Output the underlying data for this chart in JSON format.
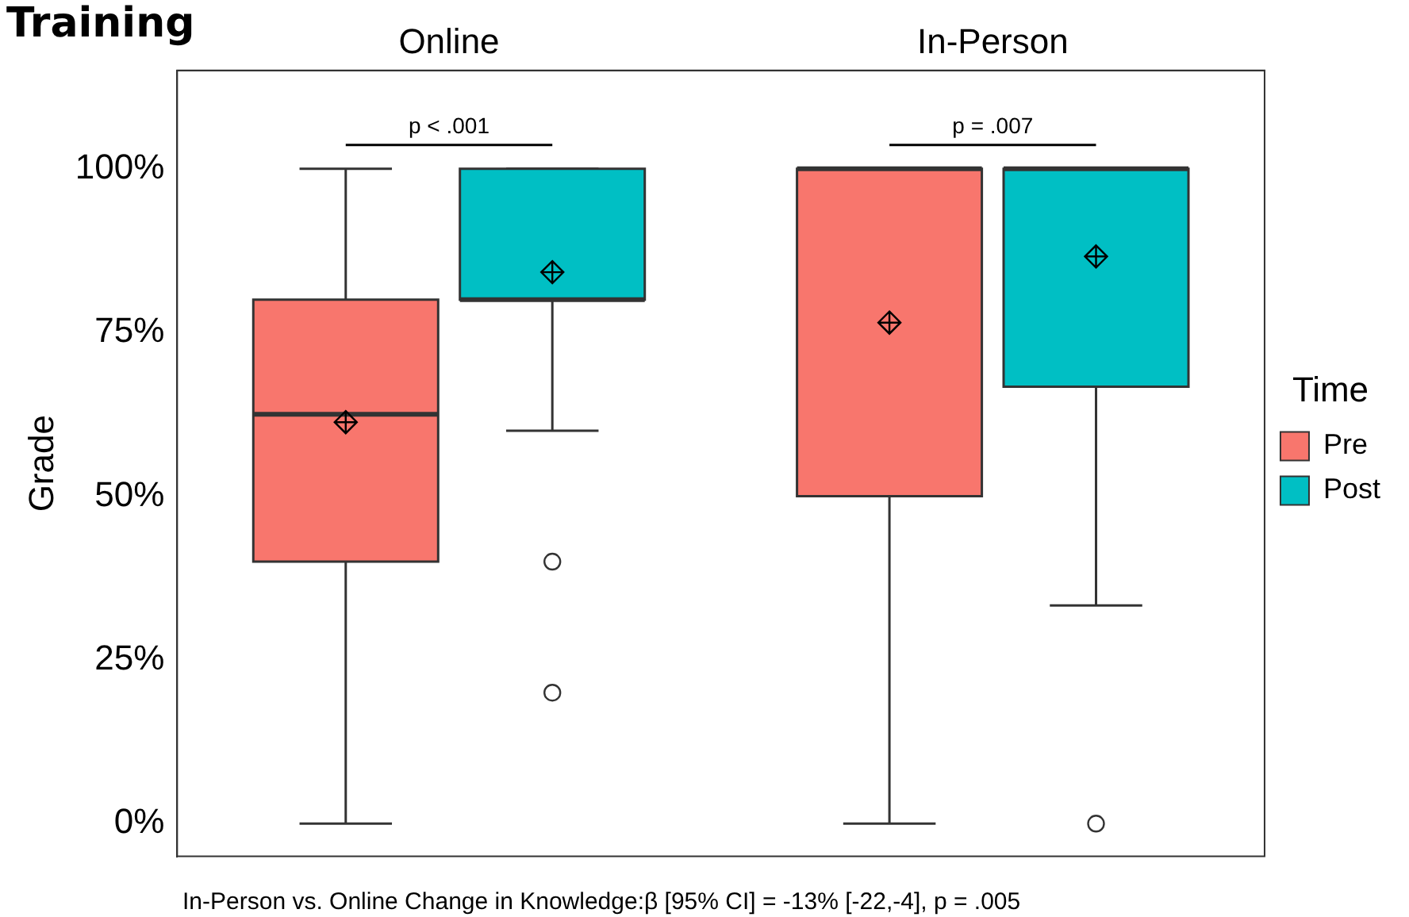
{
  "chart_data": {
    "type": "box",
    "title": "Training",
    "ylabel": "Grade",
    "legend_title": "Time",
    "legend": "right",
    "grid": false,
    "marker": "diamond",
    "categories": [
      "Online",
      "In-Person"
    ],
    "ylim": [
      -5,
      115
    ],
    "yticks": [
      {
        "value": 0,
        "label": "0%"
      },
      {
        "value": 25,
        "label": "25%"
      },
      {
        "value": 50,
        "label": "50%"
      },
      {
        "value": 75,
        "label": "75%"
      },
      {
        "value": 100,
        "label": "100%"
      }
    ],
    "series": [
      {
        "name": "Pre",
        "color": "#f8766d",
        "boxes": [
          {
            "low": 0,
            "q1": 40,
            "median": 62.5,
            "q3": 80,
            "high": 100,
            "mean": 61.3
          },
          {
            "low": 0,
            "q1": 50,
            "median": 100,
            "q3": 100,
            "high": 100,
            "mean": 76.5
          }
        ]
      },
      {
        "name": "Post",
        "color": "#00bfc4",
        "boxes": [
          {
            "low": 60,
            "q1": 80,
            "median": 80,
            "q3": 100,
            "high": 100,
            "mean": 84.2,
            "outliers": [
              40,
              20
            ]
          },
          {
            "low": 33.3,
            "q1": 66.7,
            "median": 100,
            "q3": 100,
            "high": 100,
            "mean": 86.6,
            "outliers": [
              0
            ]
          }
        ]
      }
    ],
    "annotations": [
      "p < .001",
      "p = .007",
      "In-Person vs. Online Change in Knowledge:β [95% CI] = -13% [-22,-4], p = .005"
    ]
  }
}
